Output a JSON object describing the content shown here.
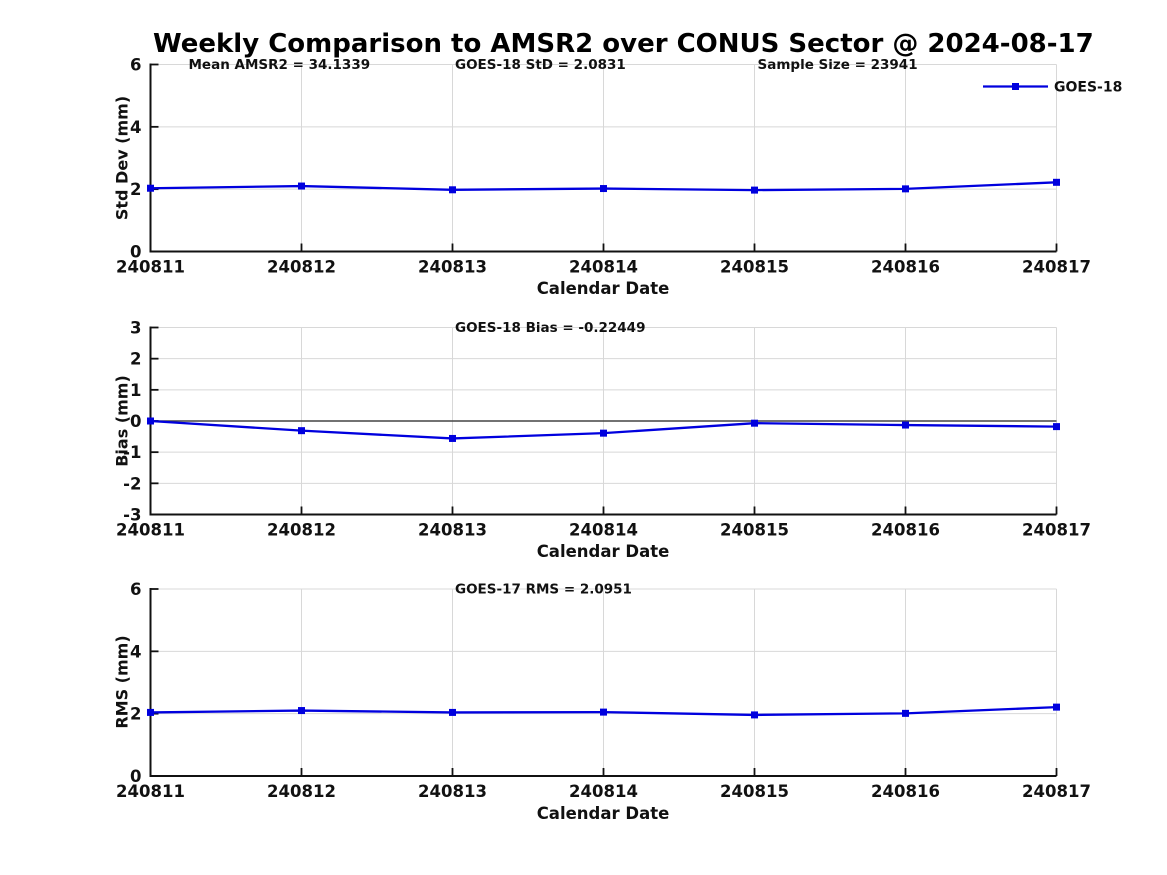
{
  "title": "Weekly Comparison to AMSR2 over CONUS Sector @ 2024-08-17",
  "legend": {
    "label": "GOES-18"
  },
  "colors": {
    "line": "#0000de",
    "grid": "#d8d8d8",
    "axis": "#111111",
    "zero_line": "#444444",
    "text": "#111111"
  },
  "chart_data": [
    {
      "type": "line",
      "name": "std-dev",
      "ylabel": "Std Dev (mm)",
      "xlabel": "Calendar Date",
      "categories": [
        "240811",
        "240812",
        "240813",
        "240814",
        "240815",
        "240816",
        "240817"
      ],
      "series": [
        {
          "name": "GOES-18",
          "values": [
            2.03,
            2.1,
            1.98,
            2.02,
            1.97,
            2.01,
            2.22
          ]
        }
      ],
      "ylim": [
        0,
        6
      ],
      "yticks": [
        0,
        2,
        4,
        6
      ],
      "grid": true,
      "legend_position": "top-right",
      "annotations": [
        "Mean AMSR2 = 34.1339",
        "GOES-18 StD = 2.0831",
        "Sample Size = 23941"
      ]
    },
    {
      "type": "line",
      "name": "bias",
      "ylabel": "Bias (mm)",
      "xlabel": "Calendar Date",
      "categories": [
        "240811",
        "240812",
        "240813",
        "240814",
        "240815",
        "240816",
        "240817"
      ],
      "series": [
        {
          "name": "GOES-18",
          "values": [
            0,
            -0.31,
            -0.56,
            -0.39,
            -0.07,
            -0.13,
            -0.18
          ]
        }
      ],
      "ylim": [
        -3,
        3
      ],
      "yticks": [
        -3,
        -2,
        -1,
        0,
        1,
        2,
        3
      ],
      "grid": true,
      "zero_line": true,
      "annotations": [
        "GOES-18 Bias  = -0.22449"
      ]
    },
    {
      "type": "line",
      "name": "rms",
      "ylabel": "RMS (mm)",
      "xlabel": "Calendar Date",
      "categories": [
        "240811",
        "240812",
        "240813",
        "240814",
        "240815",
        "240816",
        "240817"
      ],
      "series": [
        {
          "name": "GOES-18",
          "values": [
            2.04,
            2.1,
            2.04,
            2.05,
            1.96,
            2.01,
            2.21
          ]
        }
      ],
      "ylim": [
        0,
        6
      ],
      "yticks": [
        0,
        2,
        4,
        6
      ],
      "grid": true,
      "annotations": [
        "GOES-17 RMS = 2.0951"
      ]
    }
  ]
}
